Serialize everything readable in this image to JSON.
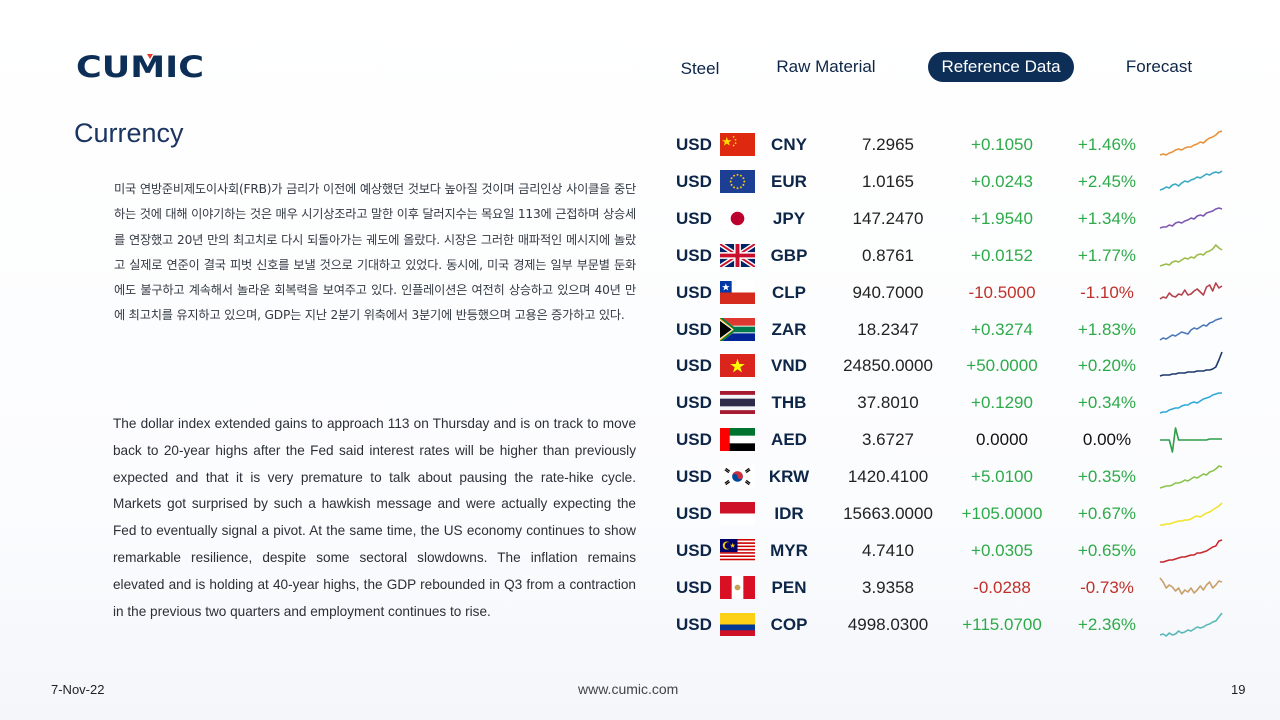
{
  "brand": {
    "logo_text": "CUMIC",
    "colors": {
      "navy": "#0d2f57",
      "green": "#2eaa4a",
      "red": "#c0302a"
    }
  },
  "nav": {
    "items": [
      {
        "label": "Steel",
        "active": false
      },
      {
        "label": "Raw Material",
        "active": false
      },
      {
        "label": "Reference Data",
        "active": true
      },
      {
        "label": "Forecast",
        "active": false
      }
    ]
  },
  "page": {
    "title": "Currency",
    "korean_text": "미국 연방준비제도이사회(FRB)가 금리가 이전에 예상했던 것보다 높아질 것이며 금리인상 사이클을 중단하는 것에 대해 이야기하는 것은 매우 시기상조라고 말한 이후 달러지수는 목요일 113에 근접하며 상승세를 연장했고 20년 만의 최고치로 다시 되돌아가는 궤도에 올랐다. 시장은 그러한 매파적인 메시지에 놀랐고 실제로 연준이 결국 피벗 신호를 보낼 것으로 기대하고 있었다. 동시에, 미국 경제는 일부 부문별 둔화에도 불구하고 계속해서 놀라운 회복력을 보여주고 있다. 인플레이션은 여전히 상승하고 있으며 40년 만에 최고치를 유지하고 있으며, GDP는 지난 2분기 위축에서 3분기에 반등했으며 고용은 증가하고 있다.",
    "english_text": "The dollar index extended gains to approach 113 on Thursday and is on track to move back to 20-year highs after the Fed said interest rates will be higher than previously expected and that it is very premature to talk about pausing the rate-hike cycle. Markets got surprised by such a hawkish message and were actually expecting the Fed to eventually signal a pivot. At the same time, the US economy continues to show remarkable resilience, despite some sectoral slowdowns. The inflation remains elevated and is holding at 40-year highs, the GDP rebounded in Q3 from a contraction in the previous two quarters and employment continues to rise."
  },
  "rates": [
    {
      "base": "USD",
      "code": "CNY",
      "flag": "cn",
      "value": "7.2965",
      "change": "+0.1050",
      "pct": "+1.46%",
      "trend": "up",
      "spark_color": "#e8923a"
    },
    {
      "base": "USD",
      "code": "EUR",
      "flag": "eu",
      "value": "1.0165",
      "change": "+0.0243",
      "pct": "+2.45%",
      "trend": "up",
      "spark_color": "#39a9c4"
    },
    {
      "base": "USD",
      "code": "JPY",
      "flag": "jp",
      "value": "147.2470",
      "change": "+1.9540",
      "pct": "+1.34%",
      "trend": "up",
      "spark_color": "#7e57b3"
    },
    {
      "base": "USD",
      "code": "GBP",
      "flag": "gb",
      "value": "0.8761",
      "change": "+0.0152",
      "pct": "+1.77%",
      "trend": "up",
      "spark_color": "#9bbd4a"
    },
    {
      "base": "USD",
      "code": "CLP",
      "flag": "cl",
      "value": "940.7000",
      "change": "-10.5000",
      "pct": "-1.10%",
      "trend": "down",
      "spark_color": "#b5424a"
    },
    {
      "base": "USD",
      "code": "ZAR",
      "flag": "za",
      "value": "18.2347",
      "change": "+0.3274",
      "pct": "+1.83%",
      "trend": "up",
      "spark_color": "#4a78b8"
    },
    {
      "base": "USD",
      "code": "VND",
      "flag": "vn",
      "value": "24850.0000",
      "change": "+50.0000",
      "pct": "+0.20%",
      "trend": "up",
      "spark_color": "#1d3a6b"
    },
    {
      "base": "USD",
      "code": "THB",
      "flag": "th",
      "value": "37.8010",
      "change": "+0.1290",
      "pct": "+0.34%",
      "trend": "up",
      "spark_color": "#2fa8d8"
    },
    {
      "base": "USD",
      "code": "AED",
      "flag": "ae",
      "value": "3.6727",
      "change": "0.0000",
      "pct": "0.00%",
      "trend": "flat",
      "spark_color": "#2e9e48"
    },
    {
      "base": "USD",
      "code": "KRW",
      "flag": "kr",
      "value": "1420.4100",
      "change": "+5.0100",
      "pct": "+0.35%",
      "trend": "up",
      "spark_color": "#8cc34a"
    },
    {
      "base": "USD",
      "code": "IDR",
      "flag": "id",
      "value": "15663.0000",
      "change": "+105.0000",
      "pct": "+0.67%",
      "trend": "up",
      "spark_color": "#f2e22c"
    },
    {
      "base": "USD",
      "code": "MYR",
      "flag": "my",
      "value": "4.7410",
      "change": "+0.0305",
      "pct": "+0.65%",
      "trend": "up",
      "spark_color": "#c8282e"
    },
    {
      "base": "USD",
      "code": "PEN",
      "flag": "pe",
      "value": "3.9358",
      "change": "-0.0288",
      "pct": "-0.73%",
      "trend": "down",
      "spark_color": "#c9a06a"
    },
    {
      "base": "USD",
      "code": "COP",
      "flag": "co",
      "value": "4998.0300",
      "change": "+115.0700",
      "pct": "+2.36%",
      "trend": "up",
      "spark_color": "#5ab8b8"
    }
  ],
  "footer": {
    "date": "7-Nov-22",
    "url": "www.cumic.com",
    "page": "19"
  }
}
